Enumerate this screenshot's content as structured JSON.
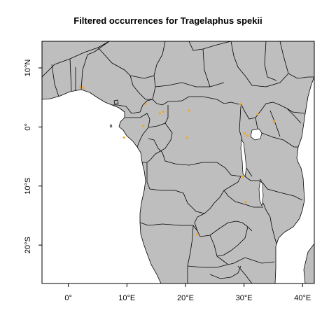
{
  "title": "Filtered occurrences for Tragelaphus spekii",
  "colors": {
    "land": "#bebebe",
    "border": "#000000",
    "ocean": "#ffffff",
    "occurrence": "#f5a623"
  },
  "map": {
    "projection": "plate carree (lon/lat)",
    "xlim": [
      -4.5,
      42
    ],
    "ylim": [
      -26.5,
      14.5
    ],
    "x_ticks": [
      {
        "value": 0,
        "label": "0°"
      },
      {
        "value": 10,
        "label": "10°E"
      },
      {
        "value": 20,
        "label": "20°E"
      },
      {
        "value": 30,
        "label": "30°E"
      },
      {
        "value": 40,
        "label": "40°E"
      }
    ],
    "y_ticks": [
      {
        "value": 10,
        "label": "10°N"
      },
      {
        "value": 0,
        "label": "0°"
      },
      {
        "value": -10,
        "label": "10°S"
      },
      {
        "value": -20,
        "label": "20°S"
      }
    ],
    "occurrences": [
      {
        "lon": 2.0,
        "lat": 6.8
      },
      {
        "lon": 2.6,
        "lat": 6.6
      },
      {
        "lon": 13.2,
        "lat": 3.9
      },
      {
        "lon": 15.6,
        "lat": 2.3
      },
      {
        "lon": 16.2,
        "lat": 2.6
      },
      {
        "lon": 20.6,
        "lat": 2.8
      },
      {
        "lon": 12.8,
        "lat": 0.2
      },
      {
        "lon": 9.5,
        "lat": -1.8
      },
      {
        "lon": 20.3,
        "lat": -1.8
      },
      {
        "lon": 29.3,
        "lat": 3.9
      },
      {
        "lon": 32.3,
        "lat": 2.2
      },
      {
        "lon": 35.1,
        "lat": 0.9
      },
      {
        "lon": 30.1,
        "lat": -1.1
      },
      {
        "lon": 30.6,
        "lat": -1.5
      },
      {
        "lon": 29.7,
        "lat": -8.4
      },
      {
        "lon": 30.3,
        "lat": -12.7
      },
      {
        "lon": 21.9,
        "lat": -18.2
      }
    ]
  }
}
